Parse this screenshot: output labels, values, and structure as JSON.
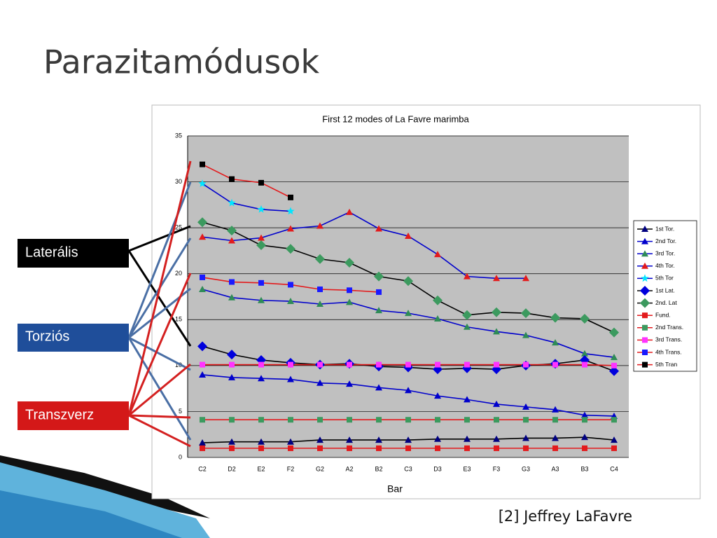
{
  "title": "Parazitamódusok",
  "labels": [
    "Laterális",
    "Torziós",
    "Transzverz"
  ],
  "citation": "[2] Jeffrey LaFavre",
  "chart_data": {
    "type": "line",
    "title": "First 12 modes of La Favre marimba",
    "x_label": "Bar",
    "categories": [
      "C2",
      "D2",
      "E2",
      "F2",
      "G2",
      "A2",
      "B2",
      "C3",
      "D3",
      "E3",
      "F3",
      "G3",
      "A3",
      "B3",
      "C4"
    ],
    "ylim": [
      0,
      35
    ],
    "yticks": [
      0,
      5,
      10,
      15,
      20,
      25,
      30,
      35
    ],
    "grid": true,
    "legend": "right",
    "series": [
      {
        "name": "1st Tor.",
        "color": "#000000",
        "marker_color": "#000080",
        "marker": "triangle",
        "values": [
          1.6,
          1.7,
          1.7,
          1.7,
          1.9,
          1.9,
          1.9,
          1.9,
          2.0,
          2.0,
          2.0,
          2.1,
          2.1,
          2.2,
          1.9
        ]
      },
      {
        "name": "2nd Tor.",
        "color": "#0000cc",
        "marker_color": "#0000cc",
        "marker": "triangle",
        "values": [
          9.0,
          8.7,
          8.6,
          8.5,
          8.1,
          8.0,
          7.6,
          7.3,
          6.7,
          6.3,
          5.8,
          5.5,
          5.2,
          4.6,
          4.5
        ]
      },
      {
        "name": "3rd Tor.",
        "color": "#0000cc",
        "marker_color": "#2e8b57",
        "marker": "triangle",
        "values": [
          18.3,
          17.4,
          17.1,
          17.0,
          16.7,
          16.9,
          16.0,
          15.7,
          15.1,
          14.2,
          13.7,
          13.3,
          12.5,
          11.3,
          10.9
        ]
      },
      {
        "name": "4th Tor.",
        "color": "#0000cc",
        "marker_color": "#e31a1c",
        "marker": "triangle",
        "values": [
          24.0,
          23.6,
          23.9,
          24.9,
          25.2,
          26.7,
          24.9,
          24.1,
          22.1,
          19.7,
          19.5,
          19.5,
          null,
          null,
          null
        ]
      },
      {
        "name": "5th Tor",
        "color": "#0000cc",
        "marker_color": "#00e5ff",
        "marker": "star",
        "values": [
          29.8,
          27.7,
          27.0,
          26.8,
          null,
          null,
          null,
          null,
          null,
          null,
          null,
          null,
          null,
          null,
          null
        ]
      },
      {
        "name": "1st Lat.",
        "color": "#000000",
        "marker_color": "#0000dd",
        "marker": "diamond",
        "values": [
          12.1,
          11.2,
          10.6,
          10.3,
          10.1,
          10.2,
          9.9,
          9.8,
          9.6,
          9.7,
          9.6,
          10.0,
          10.2,
          10.6,
          9.4
        ]
      },
      {
        "name": "2nd. Lat",
        "color": "#000000",
        "marker_color": "#3c9a5f",
        "marker": "diamond",
        "values": [
          25.6,
          24.7,
          23.1,
          22.7,
          21.6,
          21.2,
          19.7,
          19.2,
          17.1,
          15.5,
          15.8,
          15.7,
          15.2,
          15.1,
          13.6
        ]
      },
      {
        "name": "Fund.",
        "color": "#e31a1c",
        "marker_color": "#e31a1c",
        "marker": "square",
        "values": [
          1.0,
          1.0,
          1.0,
          1.0,
          1.0,
          1.0,
          1.0,
          1.0,
          1.0,
          1.0,
          1.0,
          1.0,
          1.0,
          1.0,
          1.0
        ]
      },
      {
        "name": "2nd Trans.",
        "color": "#e31a1c",
        "marker_color": "#3c9a5f",
        "marker": "square",
        "values": [
          4.1,
          4.1,
          4.1,
          4.1,
          4.1,
          4.1,
          4.1,
          4.1,
          4.1,
          4.1,
          4.1,
          4.1,
          4.1,
          4.1,
          4.1
        ]
      },
      {
        "name": "3rd Trans.",
        "color": "#e31a1c",
        "marker_color": "#ff33ff",
        "marker": "square",
        "values": [
          10.1,
          10.1,
          10.1,
          10.1,
          10.1,
          10.1,
          10.1,
          10.1,
          10.1,
          10.1,
          10.1,
          10.1,
          10.1,
          10.1,
          10.0
        ]
      },
      {
        "name": "4th Trans.",
        "color": "#e31a1c",
        "marker_color": "#1a1aff",
        "marker": "square",
        "values": [
          19.6,
          19.1,
          19.0,
          18.8,
          18.3,
          18.2,
          18.0,
          null,
          null,
          null,
          null,
          null,
          null,
          null,
          null
        ]
      },
      {
        "name": "5th Tran",
        "color": "#e31a1c",
        "marker_color": "#000000",
        "marker": "square",
        "values": [
          31.9,
          30.3,
          29.9,
          28.3,
          null,
          null,
          null,
          null,
          null,
          null,
          null,
          null,
          null,
          null,
          null
        ]
      }
    ]
  }
}
